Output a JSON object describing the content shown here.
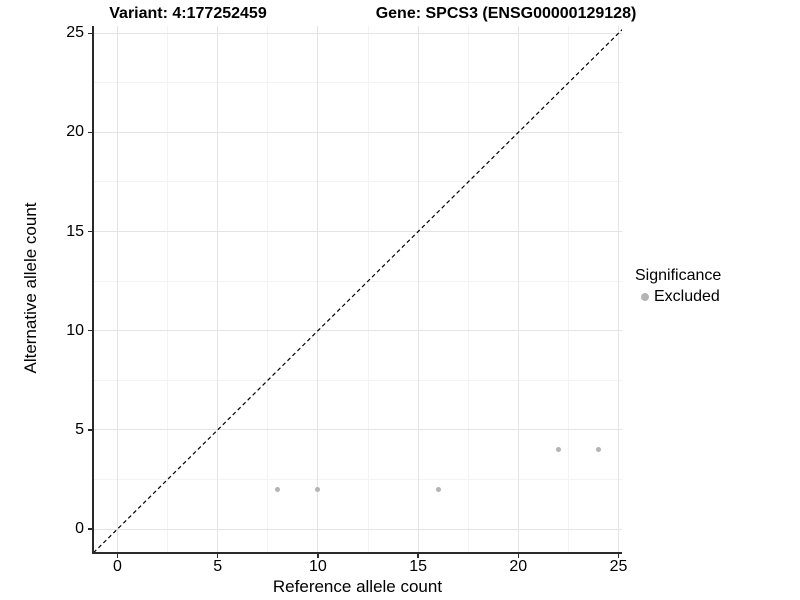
{
  "chart_data": {
    "type": "scatter",
    "title_left": "Variant: 4:177252459",
    "title_right": "Gene: SPCS3 (ENSG00000129128)",
    "xlabel": "Reference allele count",
    "ylabel": "Alternative allele count",
    "xlim": [
      -1.2,
      25.2
    ],
    "ylim": [
      -1.2,
      25.2
    ],
    "x_ticks": [
      0,
      5,
      10,
      15,
      20,
      25
    ],
    "y_ticks": [
      0,
      5,
      10,
      15,
      20,
      25
    ],
    "x_minor_ticks": [
      2.5,
      7.5,
      12.5,
      17.5,
      22.5
    ],
    "y_minor_ticks": [
      2.5,
      7.5,
      12.5,
      17.5,
      22.5
    ],
    "grid": true,
    "series": [
      {
        "name": "Excluded",
        "color": "#b4b4b4",
        "points": [
          [
            8,
            2
          ],
          [
            10,
            2
          ],
          [
            16,
            2
          ],
          [
            22,
            4
          ],
          [
            24,
            4
          ]
        ]
      }
    ],
    "identity_line": {
      "style": "dashed",
      "color": "#000000",
      "x1": -1.2,
      "y1": -1.2,
      "x2": 25.2,
      "y2": 25.2
    },
    "legend": {
      "title": "Significance",
      "position": "right",
      "entries": [
        {
          "label": "Excluded",
          "color": "#b4b4b4"
        }
      ]
    }
  }
}
